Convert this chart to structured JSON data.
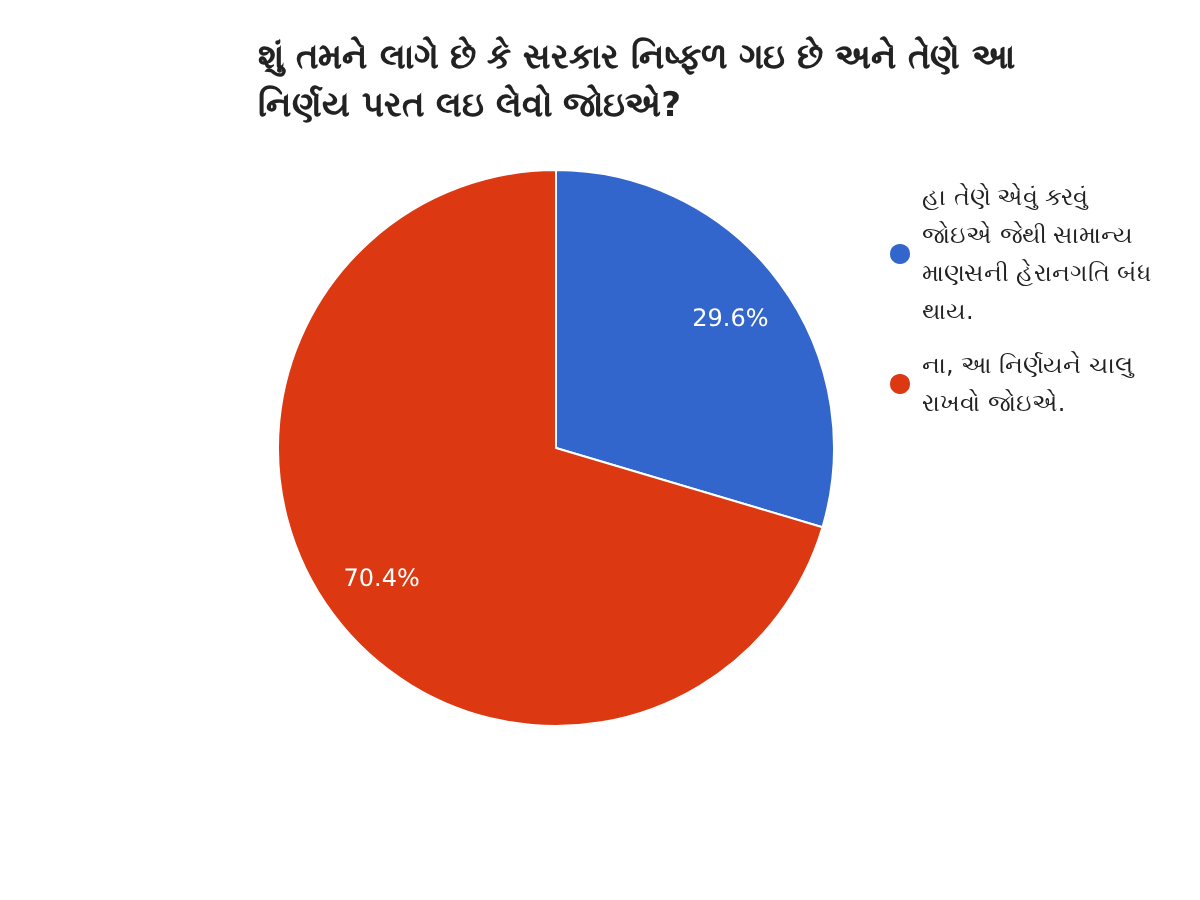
{
  "chart_data": {
    "type": "pie",
    "title": "શું તમને લાગે છે કે સરકાર નિષ્ફળ ગઇ છે અને તેણે આ નિર્ણય પરત લઇ લેવો જોઇએ?",
    "categories": [
      "હા તેણે એવું કરવું જોઇએ જેથી સામાન્ય માણસની હેરાનગતિ બંધ થાય.",
      "ના, આ નિર્ણયને ચાલુ રાખવો જોઇએ."
    ],
    "values": [
      29.6,
      70.4
    ],
    "colors": [
      "#3366cc",
      "#dc3912"
    ],
    "value_labels": [
      "29.6%",
      "70.4%"
    ],
    "legend": "top right"
  }
}
